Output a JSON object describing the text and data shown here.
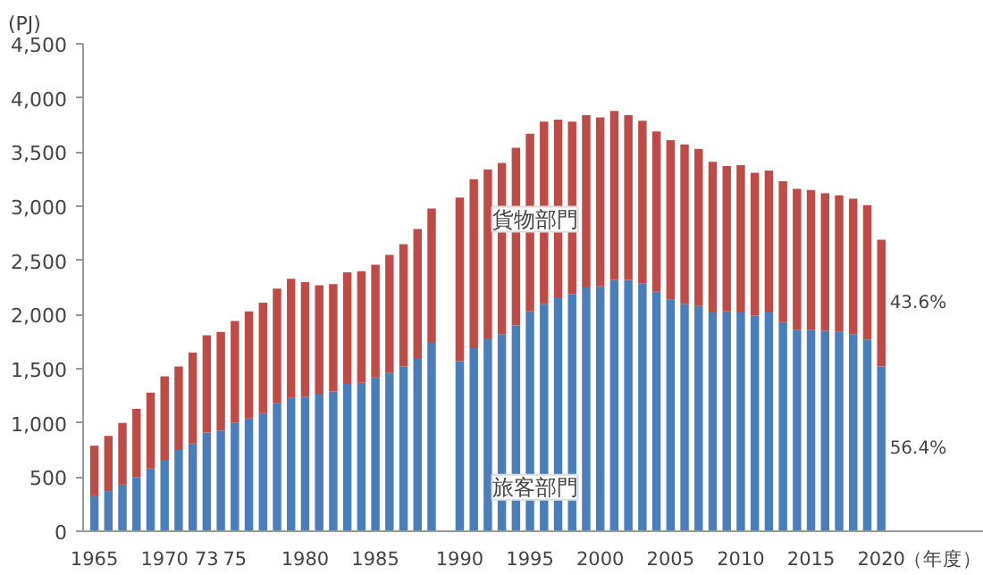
{
  "chart_data": {
    "type": "bar",
    "stacked": true,
    "ylabel": "(PJ)",
    "xlabel": "（年度）",
    "categories": [
      "1965",
      null,
      null,
      null,
      null,
      "1970",
      null,
      null,
      "73",
      null,
      "75",
      null,
      null,
      null,
      null,
      "1980",
      null,
      null,
      null,
      null,
      "1985",
      null,
      null,
      null,
      null,
      null,
      "1990",
      null,
      null,
      null,
      null,
      "1995",
      null,
      null,
      null,
      null,
      "2000",
      null,
      null,
      null,
      null,
      "2005",
      null,
      null,
      null,
      null,
      "2010",
      null,
      null,
      null,
      null,
      "2015",
      null,
      null,
      null,
      null,
      "2020"
    ],
    "series": [
      {
        "name": "旅客部門",
        "color": "#4a7ebb",
        "values": [
          330,
          370,
          430,
          500,
          580,
          660,
          750,
          810,
          910,
          930,
          1000,
          1040,
          1090,
          1180,
          1230,
          1240,
          1260,
          1290,
          1360,
          1370,
          1420,
          1460,
          1520,
          1590,
          1740,
          null,
          1570,
          1690,
          1780,
          1820,
          1900,
          2030,
          2100,
          2160,
          2190,
          2250,
          2260,
          2320,
          2320,
          2290,
          2210,
          2140,
          2100,
          2080,
          2020,
          2030,
          2020,
          1990,
          2020,
          1930,
          1860,
          1860,
          1850,
          1840,
          1820,
          1770,
          1520
        ]
      },
      {
        "name": "貨物部門",
        "color": "#be4b48",
        "values": [
          460,
          510,
          570,
          630,
          700,
          770,
          770,
          840,
          900,
          910,
          940,
          990,
          1020,
          1060,
          1100,
          1060,
          1010,
          990,
          1030,
          1030,
          1040,
          1090,
          1130,
          1200,
          1240,
          null,
          1510,
          1560,
          1560,
          1580,
          1640,
          1640,
          1680,
          1640,
          1590,
          1590,
          1560,
          1560,
          1520,
          1500,
          1480,
          1470,
          1470,
          1450,
          1390,
          1340,
          1360,
          1320,
          1310,
          1300,
          1300,
          1290,
          1270,
          1260,
          1250,
          1240,
          1170
        ]
      }
    ],
    "ylim": [
      0,
      4500
    ],
    "yticks": [
      0,
      500,
      {
        "value": 1000,
        "label": "1,000"
      },
      {
        "value": 1500,
        "label": "1,500"
      },
      {
        "value": 2000,
        "label": "2,000"
      },
      {
        "value": 2500,
        "label": "2,500"
      },
      {
        "value": 3000,
        "label": "3,000"
      },
      {
        "value": 3500,
        "label": "3,500"
      },
      {
        "value": 4000,
        "label": "4,000"
      },
      {
        "value": 4500,
        "label": "4,500"
      }
    ],
    "annotations": [
      "43.6%",
      "56.4%"
    ],
    "grid": false
  }
}
